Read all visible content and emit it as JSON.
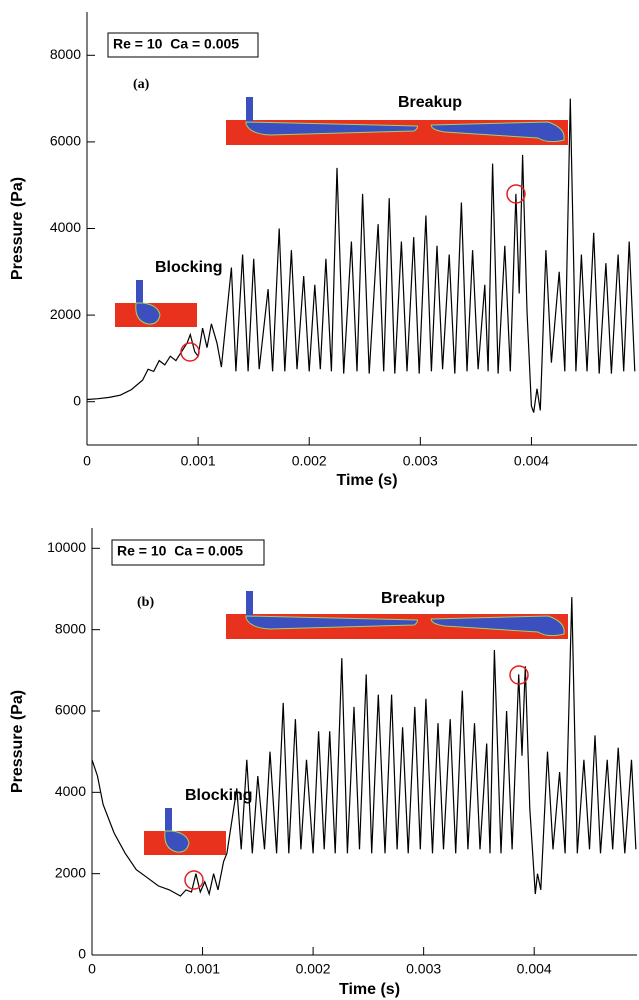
{
  "chart_data": [
    {
      "type": "line",
      "x_label": "Time (s)",
      "y_label": "Pressure (Pa)",
      "annotations": [
        "Re = 10  Ca = 0.005",
        "(a)",
        "Blocking",
        "Breakup"
      ],
      "xlim": [
        0,
        0.00495
      ],
      "xticks": [
        0,
        0.001,
        0.002,
        0.003,
        0.004
      ],
      "ylim": [
        -1000,
        9000
      ],
      "yticks": [
        0,
        2000,
        4000,
        6000,
        8000
      ],
      "color": "#000000",
      "x": [
        0,
        0.0001,
        0.0002,
        0.0003,
        0.0004,
        0.0005,
        0.00055,
        0.0006,
        0.00065,
        0.0007,
        0.00075,
        0.0008,
        0.00085,
        0.0009,
        0.00093,
        0.00097,
        0.001,
        0.00104,
        0.00108,
        0.00112,
        0.00117,
        0.00121,
        0.0013,
        0.00134,
        0.0014,
        0.00145,
        0.0015,
        0.00155,
        0.00163,
        0.00167,
        0.00173,
        0.00178,
        0.00184,
        0.00189,
        0.00195,
        0.002,
        0.00205,
        0.0021,
        0.00215,
        0.0022,
        0.00225,
        0.00231,
        0.00238,
        0.00243,
        0.00248,
        0.00254,
        0.00262,
        0.00267,
        0.00272,
        0.00277,
        0.00283,
        0.00288,
        0.00294,
        0.00299,
        0.00305,
        0.0031,
        0.00315,
        0.0032,
        0.00326,
        0.00331,
        0.00337,
        0.00342,
        0.00347,
        0.00352,
        0.00358,
        0.00361,
        0.00365,
        0.0037,
        0.00376,
        0.00381,
        0.00386,
        0.00389,
        0.00392,
        0.00396,
        0.004,
        0.00402,
        0.00405,
        0.00408,
        0.00413,
        0.00418,
        0.00425,
        0.0043,
        0.00435,
        0.0044,
        0.00445,
        0.0045,
        0.00456,
        0.00461,
        0.00467,
        0.00472,
        0.00478,
        0.00483,
        0.00488,
        0.00493
      ],
      "values": [
        50,
        70,
        100,
        150,
        280,
        500,
        750,
        700,
        950,
        850,
        1050,
        950,
        1150,
        1350,
        1550,
        1150,
        1050,
        1700,
        1250,
        1800,
        1350,
        800,
        3100,
        700,
        3400,
        700,
        3300,
        750,
        2600,
        700,
        4000,
        700,
        3500,
        750,
        2900,
        700,
        2700,
        750,
        3300,
        700,
        5400,
        650,
        3700,
        700,
        4800,
        650,
        4100,
        700,
        4700,
        650,
        3700,
        700,
        3800,
        650,
        4300,
        700,
        3600,
        750,
        3400,
        650,
        4600,
        700,
        3500,
        750,
        2700,
        700,
        5500,
        650,
        3600,
        700,
        4800,
        2500,
        5700,
        2100,
        -100,
        -250,
        300,
        -200,
        3500,
        900,
        3000,
        700,
        7000,
        700,
        3400,
        700,
        3900,
        650,
        3200,
        650,
        3400,
        700,
        3700,
        700
      ]
    },
    {
      "type": "line",
      "x_label": "Time (s)",
      "y_label": "Pressure (Pa)",
      "annotations": [
        "Re = 10  Ca = 0.005",
        "(b)",
        "Blocking",
        "Breakup"
      ],
      "xlim": [
        0,
        0.00493
      ],
      "xticks": [
        0,
        0.001,
        0.002,
        0.003,
        0.004
      ],
      "ylim": [
        0,
        10500
      ],
      "yticks": [
        0,
        2000,
        4000,
        6000,
        8000,
        10000
      ],
      "color": "#000000",
      "x": [
        0,
        5e-05,
        0.0001,
        0.0002,
        0.0003,
        0.0004,
        0.0005,
        0.0006,
        0.0007,
        0.0008,
        0.00085,
        0.0009,
        0.00094,
        0.00098,
        0.00102,
        0.00106,
        0.0011,
        0.00114,
        0.00119,
        0.00122,
        0.00131,
        0.00135,
        0.0014,
        0.00145,
        0.0015,
        0.00156,
        0.00161,
        0.00167,
        0.00173,
        0.00178,
        0.00184,
        0.00189,
        0.00194,
        0.002,
        0.00205,
        0.0021,
        0.00215,
        0.0022,
        0.00226,
        0.00231,
        0.00237,
        0.00242,
        0.00248,
        0.00253,
        0.00259,
        0.00265,
        0.00271,
        0.00276,
        0.00281,
        0.00286,
        0.00292,
        0.00297,
        0.00302,
        0.00308,
        0.00313,
        0.00318,
        0.00324,
        0.00329,
        0.00335,
        0.0034,
        0.00346,
        0.00351,
        0.00357,
        0.0036,
        0.00364,
        0.0037,
        0.00375,
        0.0038,
        0.00386,
        0.00389,
        0.00392,
        0.00396,
        0.00401,
        0.00403,
        0.00406,
        0.00412,
        0.00417,
        0.00423,
        0.00428,
        0.00434,
        0.00439,
        0.00445,
        0.0045,
        0.00455,
        0.0046,
        0.00466,
        0.00471,
        0.00476,
        0.00482,
        0.00488,
        0.00492
      ],
      "values": [
        4800,
        4400,
        3700,
        3000,
        2500,
        2100,
        1900,
        1700,
        1600,
        1450,
        1600,
        1550,
        2000,
        1550,
        1800,
        1500,
        2000,
        1600,
        2300,
        2500,
        4100,
        2600,
        4800,
        2500,
        4400,
        2600,
        5000,
        2500,
        6200,
        2500,
        5800,
        2600,
        4800,
        2500,
        5500,
        2600,
        5500,
        2500,
        7300,
        2500,
        6100,
        2600,
        6900,
        2500,
        6400,
        2500,
        6400,
        2600,
        5600,
        2500,
        6100,
        2600,
        6300,
        2500,
        5700,
        2600,
        5800,
        2500,
        6500,
        2600,
        5700,
        2600,
        5200,
        2500,
        7500,
        2500,
        6000,
        2600,
        6900,
        4900,
        7100,
        3600,
        1500,
        2000,
        1600,
        5000,
        2600,
        4500,
        2500,
        8800,
        2500,
        4800,
        2600,
        5400,
        2500,
        4800,
        2600,
        5100,
        2500,
        4800,
        2600
      ]
    }
  ]
}
